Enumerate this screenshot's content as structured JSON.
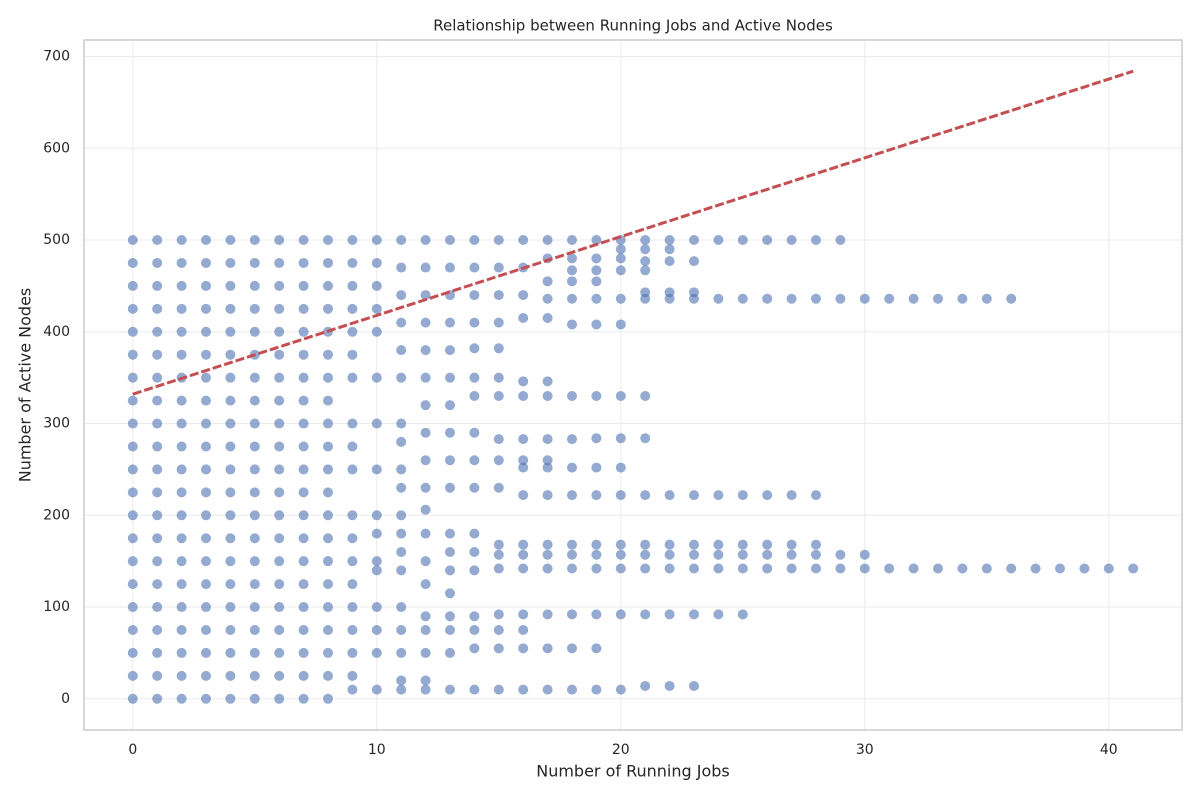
{
  "chart_data": {
    "type": "scatter",
    "title": "Relationship between Running Jobs and Active Nodes",
    "x_label": "Number of Running Jobs",
    "y_label": "Number of Active Nodes",
    "color": "#4c72b0",
    "xlim": [
      -2,
      43
    ],
    "xticks": [
      0,
      10,
      20,
      30,
      40
    ],
    "ylim": [
      -34,
      718
    ],
    "yticks": [
      0,
      100,
      200,
      300,
      400,
      500,
      600,
      700
    ],
    "grid": true,
    "x": [
      0,
      0,
      0,
      0,
      0,
      0,
      0,
      0,
      0,
      0,
      0,
      0,
      0,
      0,
      0,
      0,
      0,
      0,
      0,
      0,
      0,
      1,
      1,
      1,
      1,
      1,
      1,
      1,
      1,
      1,
      1,
      1,
      1,
      1,
      1,
      1,
      1,
      1,
      1,
      1,
      1,
      1,
      2,
      2,
      2,
      2,
      2,
      2,
      2,
      2,
      2,
      2,
      2,
      2,
      2,
      2,
      2,
      2,
      2,
      2,
      2,
      2,
      2,
      3,
      3,
      3,
      3,
      3,
      3,
      3,
      3,
      3,
      3,
      3,
      3,
      3,
      3,
      3,
      3,
      3,
      3,
      3,
      3,
      3,
      4,
      4,
      4,
      4,
      4,
      4,
      4,
      4,
      4,
      4,
      4,
      4,
      4,
      4,
      4,
      4,
      4,
      4,
      4,
      4,
      4,
      5,
      5,
      5,
      5,
      5,
      5,
      5,
      5,
      5,
      5,
      5,
      5,
      5,
      5,
      5,
      5,
      5,
      5,
      5,
      5,
      5,
      6,
      6,
      6,
      6,
      6,
      6,
      6,
      6,
      6,
      6,
      6,
      6,
      6,
      6,
      6,
      6,
      6,
      6,
      6,
      6,
      6,
      7,
      7,
      7,
      7,
      7,
      7,
      7,
      7,
      7,
      7,
      7,
      7,
      7,
      7,
      7,
      7,
      7,
      7,
      7,
      7,
      7,
      8,
      8,
      8,
      8,
      8,
      8,
      8,
      8,
      8,
      8,
      8,
      8,
      8,
      8,
      8,
      8,
      8,
      8,
      8,
      8,
      8,
      9,
      9,
      9,
      9,
      9,
      9,
      9,
      9,
      9,
      9,
      9,
      9,
      9,
      9,
      9,
      9,
      9,
      9,
      9,
      10,
      10,
      10,
      10,
      10,
      10,
      10,
      10,
      10,
      10,
      10,
      10,
      10,
      10,
      10,
      10,
      11,
      11,
      11,
      11,
      11,
      11,
      11,
      11,
      11,
      11,
      11,
      11,
      11,
      11,
      11,
      11,
      11,
      11,
      11,
      12,
      12,
      12,
      12,
      12,
      12,
      12,
      12,
      12,
      12,
      12,
      12,
      12,
      12,
      12,
      12,
      12,
      12,
      12,
      13,
      13,
      13,
      13,
      13,
      13,
      13,
      13,
      13,
      13,
      13,
      13,
      13,
      13,
      13,
      13,
      13,
      13,
      14,
      14,
      14,
      14,
      14,
      14,
      14,
      14,
      14,
      14,
      14,
      14,
      14,
      14,
      14,
      14,
      14,
      15,
      15,
      15,
      15,
      15,
      15,
      15,
      15,
      15,
      15,
      15,
      15,
      15,
      15,
      15,
      15,
      15,
      16,
      16,
      16,
      16,
      16,
      16,
      16,
      16,
      16,
      16,
      16,
      16,
      16,
      16,
      16,
      16,
      16,
      17,
      17,
      17,
      17,
      17,
      17,
      17,
      17,
      17,
      17,
      17,
      17,
      17,
      17,
      17,
      17,
      17,
      18,
      18,
      18,
      18,
      18,
      18,
      18,
      18,
      18,
      18,
      18,
      18,
      18,
      18,
      18,
      18,
      19,
      19,
      19,
      19,
      19,
      19,
      19,
      19,
      19,
      19,
      19,
      19,
      19,
      19,
      19,
      19,
      20,
      20,
      20,
      20,
      20,
      20,
      20,
      20,
      20,
      20,
      20,
      20,
      20,
      20,
      20,
      21,
      21,
      21,
      21,
      21,
      21,
      21,
      21,
      21,
      21,
      21,
      21,
      21,
      21,
      22,
      22,
      22,
      22,
      22,
      22,
      22,
      22,
      22,
      22,
      22,
      23,
      23,
      23,
      23,
      23,
      23,
      23,
      23,
      23,
      23,
      24,
      24,
      24,
      24,
      24,
      24,
      24,
      25,
      25,
      25,
      25,
      25,
      25,
      25,
      26,
      26,
      26,
      26,
      26,
      26,
      27,
      27,
      27,
      27,
      27,
      27,
      28,
      28,
      28,
      28,
      28,
      28,
      29,
      29,
      29,
      29,
      30,
      30,
      30,
      31,
      31,
      32,
      32,
      33,
      33,
      34,
      34,
      35,
      35,
      36,
      36,
      37,
      38,
      39,
      40,
      41
    ],
    "y": [
      0,
      25,
      50,
      75,
      100,
      125,
      150,
      175,
      200,
      225,
      250,
      275,
      300,
      325,
      350,
      375,
      400,
      425,
      450,
      475,
      500,
      0,
      25,
      50,
      75,
      100,
      125,
      150,
      175,
      200,
      225,
      250,
      275,
      300,
      325,
      350,
      375,
      400,
      425,
      450,
      475,
      500,
      0,
      25,
      50,
      75,
      100,
      125,
      150,
      175,
      200,
      225,
      250,
      275,
      300,
      325,
      350,
      375,
      400,
      425,
      450,
      475,
      500,
      0,
      25,
      50,
      75,
      100,
      125,
      150,
      175,
      200,
      225,
      250,
      275,
      300,
      325,
      350,
      375,
      400,
      425,
      450,
      475,
      500,
      0,
      25,
      50,
      75,
      100,
      125,
      150,
      175,
      200,
      225,
      250,
      275,
      300,
      325,
      350,
      375,
      400,
      425,
      450,
      475,
      500,
      0,
      25,
      50,
      75,
      100,
      125,
      150,
      175,
      200,
      225,
      250,
      275,
      300,
      325,
      350,
      375,
      400,
      425,
      450,
      475,
      500,
      0,
      25,
      50,
      75,
      100,
      125,
      150,
      175,
      200,
      225,
      250,
      275,
      300,
      325,
      350,
      375,
      400,
      425,
      450,
      475,
      500,
      0,
      25,
      50,
      75,
      100,
      125,
      150,
      175,
      200,
      225,
      250,
      275,
      300,
      325,
      350,
      375,
      400,
      425,
      450,
      475,
      500,
      0,
      25,
      50,
      75,
      100,
      125,
      150,
      175,
      200,
      225,
      250,
      275,
      300,
      325,
      350,
      375,
      400,
      425,
      450,
      475,
      500,
      500,
      475,
      450,
      425,
      400,
      375,
      350,
      300,
      275,
      250,
      200,
      175,
      150,
      125,
      100,
      75,
      50,
      25,
      10,
      500,
      475,
      450,
      425,
      400,
      350,
      300,
      250,
      200,
      180,
      150,
      140,
      100,
      75,
      50,
      10,
      500,
      470,
      440,
      410,
      380,
      350,
      300,
      280,
      250,
      230,
      200,
      180,
      160,
      140,
      100,
      75,
      50,
      20,
      10,
      500,
      470,
      440,
      410,
      380,
      350,
      320,
      290,
      260,
      230,
      206,
      180,
      150,
      125,
      90,
      75,
      50,
      20,
      10,
      500,
      470,
      440,
      410,
      380,
      350,
      320,
      290,
      260,
      230,
      180,
      160,
      140,
      115,
      90,
      75,
      50,
      10,
      500,
      470,
      440,
      410,
      382,
      350,
      330,
      290,
      260,
      230,
      180,
      160,
      140,
      90,
      75,
      55,
      10,
      500,
      470,
      440,
      410,
      382,
      350,
      330,
      283,
      260,
      230,
      168,
      157,
      142,
      92,
      75,
      55,
      10,
      500,
      470,
      440,
      415,
      346,
      330,
      283,
      260,
      252,
      222,
      168,
      157,
      142,
      92,
      75,
      55,
      10,
      500,
      480,
      455,
      436,
      415,
      346,
      330,
      283,
      260,
      252,
      222,
      168,
      157,
      142,
      92,
      55,
      10,
      500,
      480,
      467,
      455,
      436,
      408,
      330,
      283,
      252,
      222,
      168,
      157,
      142,
      92,
      55,
      10,
      500,
      480,
      467,
      455,
      436,
      408,
      330,
      284,
      252,
      222,
      168,
      157,
      142,
      92,
      55,
      10,
      500,
      490,
      480,
      467,
      436,
      408,
      330,
      284,
      252,
      222,
      168,
      157,
      142,
      92,
      10,
      500,
      490,
      477,
      467,
      443,
      436,
      330,
      284,
      222,
      168,
      157,
      142,
      92,
      14,
      500,
      490,
      477,
      443,
      436,
      222,
      168,
      157,
      142,
      92,
      14,
      500,
      477,
      443,
      436,
      222,
      168,
      157,
      142,
      92,
      14,
      500,
      436,
      222,
      168,
      157,
      142,
      92,
      500,
      436,
      222,
      168,
      157,
      142,
      92,
      500,
      436,
      222,
      168,
      157,
      142,
      500,
      436,
      222,
      168,
      157,
      142,
      500,
      436,
      222,
      168,
      157,
      142,
      500,
      436,
      157,
      142,
      436,
      157,
      142,
      436,
      142,
      436,
      142,
      436,
      142,
      436,
      142,
      436,
      142,
      436,
      142,
      142,
      142,
      142,
      142,
      142
    ],
    "trendline": {
      "color": "#c44e52",
      "x": [
        0,
        41
      ],
      "y": [
        332,
        684
      ]
    }
  }
}
